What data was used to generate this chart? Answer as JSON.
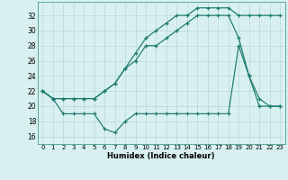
{
  "xlabel": "Humidex (Indice chaleur)",
  "xlim": [
    -0.5,
    23.5
  ],
  "ylim": [
    15.0,
    33.8
  ],
  "yticks": [
    16,
    18,
    20,
    22,
    24,
    26,
    28,
    30,
    32
  ],
  "xticks": [
    0,
    1,
    2,
    3,
    4,
    5,
    6,
    7,
    8,
    9,
    10,
    11,
    12,
    13,
    14,
    15,
    16,
    17,
    18,
    19,
    20,
    21,
    22,
    23
  ],
  "line_color": "#1a7a6e",
  "bg_color": "#d8f0f0",
  "grid_color": "#b8d8d8",
  "line1_x": [
    0,
    1,
    2,
    3,
    4,
    5,
    6,
    7,
    8,
    9,
    10,
    11,
    12,
    13,
    14,
    15,
    16,
    17,
    18,
    19,
    20,
    21,
    22,
    23
  ],
  "line1_y": [
    22,
    21,
    21,
    21,
    21,
    21,
    22,
    23,
    25,
    27,
    29,
    30,
    31,
    32,
    32,
    33,
    33,
    33,
    33,
    32,
    32,
    32,
    32,
    32
  ],
  "line2_x": [
    0,
    1,
    2,
    3,
    4,
    5,
    6,
    7,
    8,
    9,
    10,
    11,
    12,
    13,
    14,
    15,
    16,
    17,
    18,
    19,
    20,
    21,
    22,
    23
  ],
  "line2_y": [
    22,
    21,
    21,
    21,
    21,
    21,
    22,
    23,
    25,
    26,
    28,
    28,
    29,
    30,
    31,
    32,
    32,
    32,
    32,
    29,
    24,
    21,
    20,
    20
  ],
  "line3_x": [
    0,
    1,
    2,
    3,
    4,
    5,
    6,
    7,
    8,
    9,
    10,
    11,
    12,
    13,
    14,
    15,
    16,
    17,
    18,
    19,
    20,
    21,
    22,
    23
  ],
  "line3_y": [
    22,
    21,
    19,
    19,
    19,
    19,
    17,
    16.5,
    18,
    19,
    19,
    19,
    19,
    19,
    19,
    19,
    19,
    19,
    19,
    28,
    24,
    20,
    20,
    20
  ]
}
